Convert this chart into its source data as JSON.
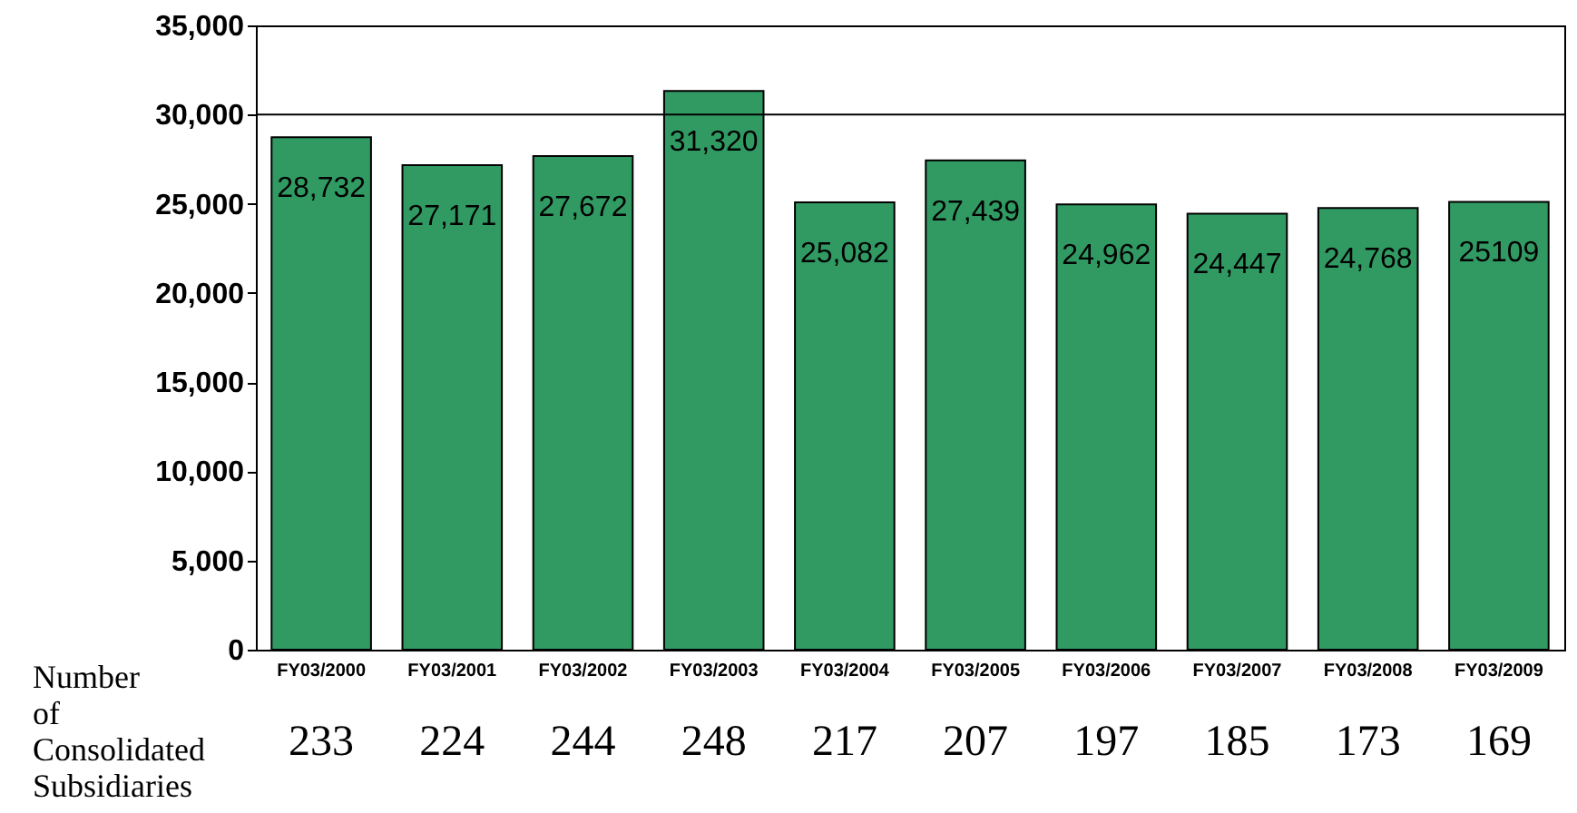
{
  "chart_data": {
    "type": "bar",
    "categories": [
      "FY03/2000",
      "FY03/2001",
      "FY03/2002",
      "FY03/2003",
      "FY03/2004",
      "FY03/2005",
      "FY03/2006",
      "FY03/2007",
      "FY03/2008",
      "FY03/2009"
    ],
    "values": [
      28732,
      27171,
      27672,
      31320,
      25082,
      27439,
      24962,
      24447,
      24768,
      25109
    ],
    "value_labels": [
      "28,732",
      "27,171",
      "27,672",
      "31,320",
      "25,082",
      "27,439",
      "24,962",
      "24,447",
      "24,768",
      "25109"
    ],
    "color": "#319a63",
    "ylim": [
      0,
      35000
    ],
    "yticks": [
      0,
      {
        "value": 5000,
        "label": "5,000"
      },
      {
        "value": 10000,
        "label": "10,000"
      },
      {
        "value": 15000,
        "label": "15,000"
      },
      {
        "value": 20000,
        "label": "20,000"
      },
      {
        "value": 25000,
        "label": "25,000"
      },
      {
        "value": 30000,
        "label": "30,000"
      },
      {
        "value": 35000,
        "label": "35,000"
      }
    ],
    "ref_lines": [
      {
        "axis": "y",
        "value": 30000
      }
    ],
    "annotations": [
      "Number of Consolidated Subsidiaries",
      "233",
      "224",
      "244",
      "248",
      "217",
      "207",
      "197",
      "185",
      "173",
      "169"
    ]
  }
}
